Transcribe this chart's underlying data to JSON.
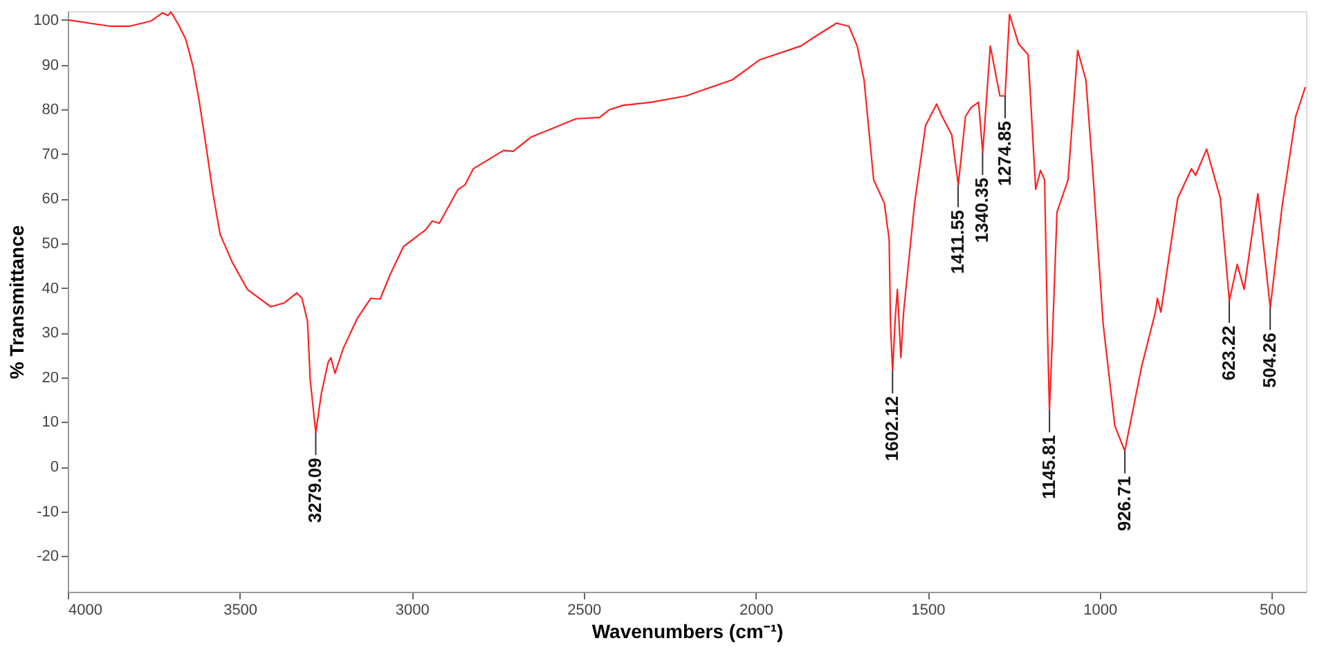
{
  "chart_data": {
    "type": "line",
    "xlabel": "Wavenumbers (cm⁻¹)",
    "ylabel": "% Transmittance",
    "xlim": [
      4000,
      400
    ],
    "xticks": [
      4000,
      3500,
      3000,
      2500,
      2000,
      1500,
      1000,
      500
    ],
    "ylim": [
      -28,
      102
    ],
    "yticks": [
      -20,
      -10,
      0,
      10,
      20,
      30,
      40,
      50,
      60,
      70,
      80,
      90,
      100
    ],
    "grid": false,
    "marker": "none",
    "line_style": "solid",
    "series": [
      {
        "color": "#ff2020",
        "x": [
          4000,
          3876,
          3821,
          3757,
          3725,
          3709,
          3700,
          3677,
          3657,
          3636,
          3617,
          3597,
          3578,
          3557,
          3522,
          3478,
          3410,
          3370,
          3334,
          3319,
          3303,
          3295,
          3279,
          3263,
          3243,
          3235,
          3223,
          3199,
          3159,
          3119,
          3092,
          3064,
          3024,
          2960,
          2940,
          2920,
          2865,
          2845,
          2821,
          2733,
          2705,
          2653,
          2586,
          2522,
          2454,
          2426,
          2386,
          2303,
          2203,
          2068,
          1988,
          1868,
          1829,
          1765,
          1729,
          1705,
          1685,
          1657,
          1626,
          1612,
          1608,
          1602,
          1594,
          1588,
          1578,
          1570,
          1538,
          1506,
          1474,
          1458,
          1430,
          1411,
          1390,
          1374,
          1352,
          1340,
          1318,
          1290,
          1275,
          1262,
          1236,
          1208,
          1186,
          1172,
          1160,
          1152,
          1146,
          1136,
          1124,
          1092,
          1064,
          1040,
          1020,
          990,
          956,
          927,
          878,
          838,
          832,
          822,
          773,
          733,
          721,
          689,
          649,
          623,
          600,
          580,
          540,
          504,
          470,
          430,
          402
        ],
        "values": [
          100,
          98.6,
          98.6,
          99.8,
          101.6,
          101,
          101.8,
          98.8,
          95.7,
          89.6,
          81.4,
          71.3,
          61.2,
          52,
          45.8,
          39.7,
          35.8,
          36.7,
          38.9,
          37.7,
          32.5,
          19.3,
          7.6,
          16.3,
          23.4,
          24.4,
          20.9,
          26.5,
          33.1,
          37.7,
          37.5,
          42.8,
          49.3,
          53,
          55,
          54.5,
          62.1,
          63.1,
          66.7,
          70.8,
          70.6,
          73.8,
          75.9,
          77.9,
          78.2,
          79.9,
          80.9,
          81.6,
          83,
          86.6,
          91.1,
          94.2,
          96.2,
          99.3,
          98.6,
          94.2,
          86.6,
          64.2,
          59,
          50.9,
          31.6,
          21.4,
          33.6,
          39.7,
          24.4,
          34.6,
          59,
          76.4,
          81.2,
          78.4,
          74.3,
          63.1,
          78.4,
          80.4,
          81.6,
          70.3,
          94.2,
          83,
          83,
          101.3,
          94.7,
          92.2,
          62.1,
          66.3,
          64.2,
          31.6,
          12.7,
          31.6,
          57,
          64.2,
          93.2,
          86.6,
          66.2,
          32.1,
          9.2,
          3.5,
          22.4,
          34.6,
          37.7,
          34.6,
          60.1,
          66.7,
          65.2,
          71.1,
          60.1,
          37.2,
          45.3,
          39.7,
          61.1,
          35.6,
          58,
          78.4,
          85
        ]
      }
    ],
    "annotations": [
      {
        "text": "3279.09",
        "x": 3279.09,
        "y": 7.6
      },
      {
        "text": "1602.12",
        "x": 1602.12,
        "y": 21.4
      },
      {
        "text": "1411.55",
        "x": 1411.55,
        "y": 63.1
      },
      {
        "text": "1340.35",
        "x": 1340.35,
        "y": 70.3
      },
      {
        "text": "1274.85",
        "x": 1274.85,
        "y": 83
      },
      {
        "text": "1145.81",
        "x": 1145.81,
        "y": 12.7
      },
      {
        "text": "926.71",
        "x": 926.71,
        "y": 3.5
      },
      {
        "text": "623.22",
        "x": 623.22,
        "y": 37.2
      },
      {
        "text": "504.26",
        "x": 504.26,
        "y": 35.6
      }
    ]
  }
}
